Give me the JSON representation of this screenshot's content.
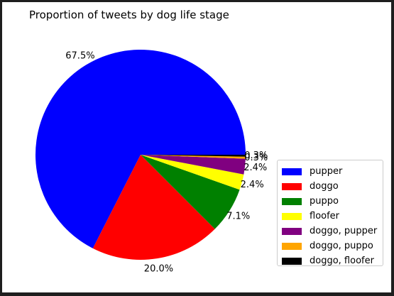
{
  "chart_data": {
    "type": "pie",
    "title": "Proportion of tweets by dog life stage",
    "categories": [
      "pupper",
      "doggo",
      "puppo",
      "floofer",
      "doggo, pupper",
      "doggo, puppo",
      "doggo, floofer"
    ],
    "values": [
      67.5,
      20.0,
      7.1,
      2.4,
      2.4,
      0.3,
      0.3
    ],
    "labels": [
      "67.5%",
      "20.0%",
      "7.1%",
      "2.4%",
      "2.4%",
      "0.3%",
      "0.3%"
    ],
    "colors": [
      "#0000ff",
      "#ff0000",
      "#008000",
      "#ffff00",
      "#800080",
      "#ffa500",
      "#000000"
    ],
    "start_angle": 0,
    "direction": "counterclockwise",
    "legend_position": "lower-right"
  }
}
